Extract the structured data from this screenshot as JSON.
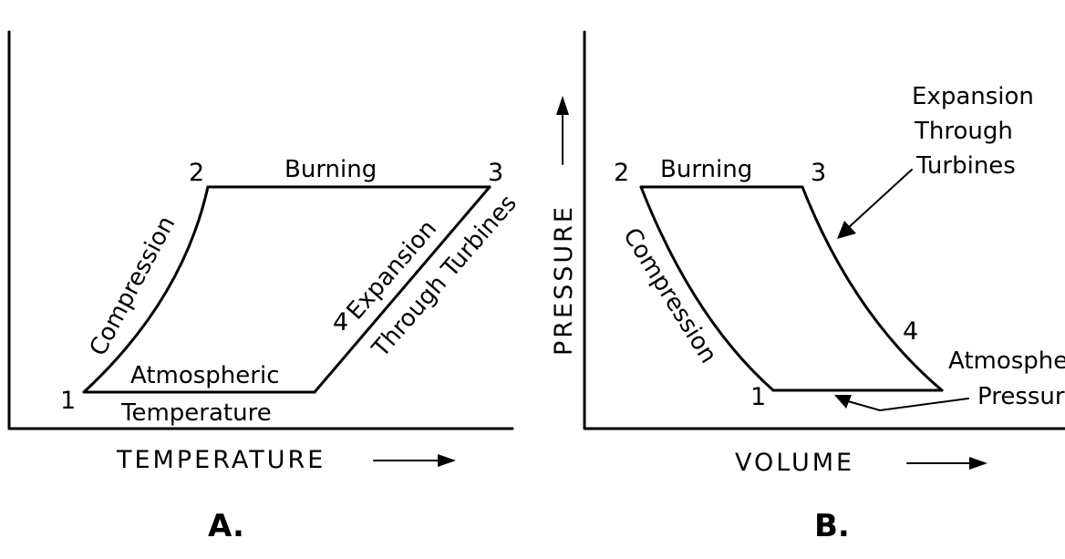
{
  "panel_a": {
    "panel_label": "A.",
    "x_axis_label": "TEMPERATURE",
    "points": [
      "1",
      "2",
      "3",
      "4"
    ],
    "processes": {
      "compression": "Compression",
      "burning": "Burning",
      "expansion_line1": "Expansion",
      "expansion_line2": "Through Turbines",
      "atmospheric_line1": "Atmospheric",
      "atmospheric_line2": "Temperature"
    }
  },
  "panel_b": {
    "panel_label": "B.",
    "x_axis_label": "VOLUME",
    "y_axis_label": "PRESSURE",
    "points": [
      "1",
      "2",
      "3",
      "4"
    ],
    "processes": {
      "compression": "Compression",
      "burning": "Burning",
      "expansion_line1": "Expansion",
      "expansion_line2": "Through",
      "expansion_line3": "Turbines",
      "atmospheric_line1": "Atmospheric",
      "atmospheric_line2": "Pressure"
    }
  }
}
